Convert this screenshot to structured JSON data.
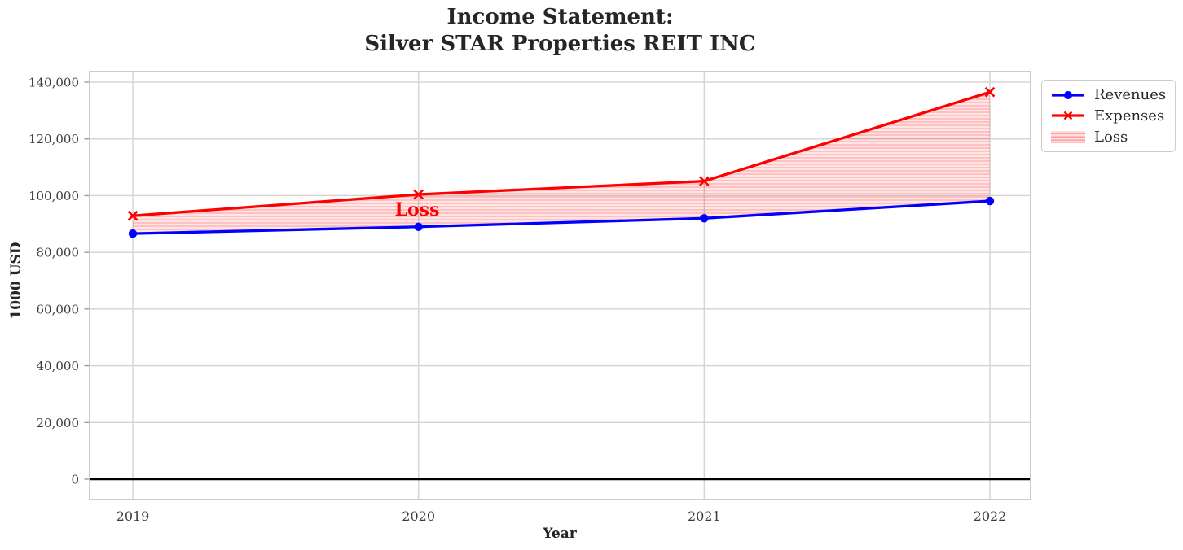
{
  "chart_data": {
    "type": "line",
    "title": "Income Statement:\nSilver STAR Properties REIT INC",
    "xlabel": "Year",
    "ylabel": "1000 USD",
    "categories": [
      "2019",
      "2020",
      "2021",
      "2022"
    ],
    "series": [
      {
        "name": "Revenues",
        "color": "#0000ff",
        "marker": "circle",
        "values": [
          86600,
          89000,
          92000,
          98100
        ]
      },
      {
        "name": "Expenses",
        "color": "#ff0000",
        "marker": "x",
        "values": [
          92900,
          100400,
          105100,
          136500
        ]
      }
    ],
    "loss_area": {
      "label": "Loss",
      "between": [
        "Expenses",
        "Revenues"
      ],
      "face_color": "rgba(255,0,0,0.10)",
      "hatch": "horizontal-lines",
      "hatch_color": "rgba(255,0,0,0.25)"
    },
    "annotation": {
      "text": "Loss",
      "color": "#ff0000",
      "x_category": "2020",
      "y_value": 95000
    },
    "y_ticks": {
      "values": [
        0,
        20000,
        40000,
        60000,
        80000,
        100000,
        120000,
        140000
      ],
      "labels": [
        "0",
        "20,000",
        "40,000",
        "60,000",
        "80,000",
        "100,000",
        "120,000",
        "140,000"
      ]
    },
    "ylim": [
      -7000,
      144000
    ],
    "grid": true,
    "grid_color": "#d5d5d5",
    "spine_color": "#c6c6c6",
    "tick_label_color": "#3c3c3c",
    "zero_line_color": "#000000",
    "legend": {
      "position": "outside-upper-right",
      "items": [
        "Revenues",
        "Expenses",
        "Loss"
      ]
    }
  }
}
